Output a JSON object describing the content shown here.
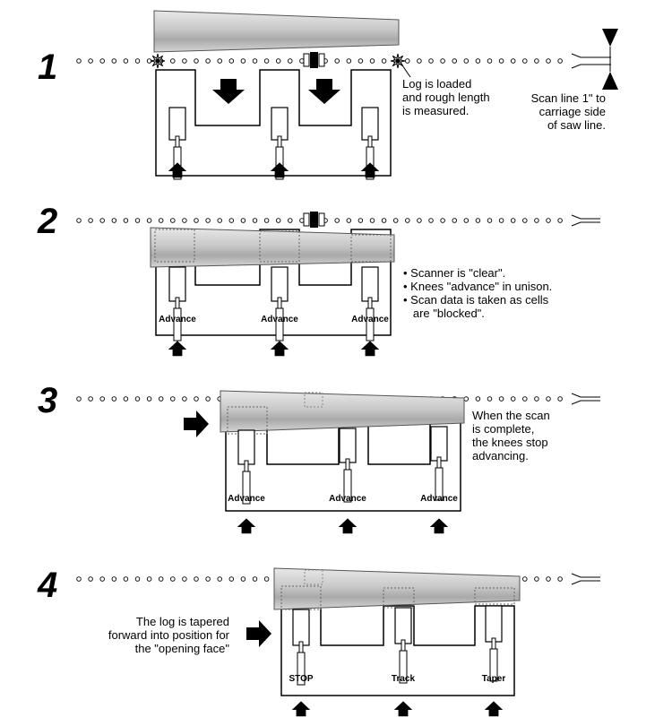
{
  "steps": [
    {
      "number": "1",
      "notes": [
        "Log is loaded",
        "and rough length",
        "is measured."
      ],
      "scan_note": [
        "Scan line 1\" to",
        "carriage side",
        "of saw line."
      ]
    },
    {
      "number": "2",
      "knee_labels": [
        "Advance",
        "Advance",
        "Advance"
      ],
      "bullets": [
        "Scanner is \"clear\".",
        "Knees \"advance\" in unison.",
        "Scan data is taken as cells",
        "are \"blocked\"."
      ]
    },
    {
      "number": "3",
      "knee_labels": [
        "Advance",
        "Advance",
        "Advance"
      ],
      "notes": [
        "When the scan",
        "is complete,",
        "the knees stop",
        "advancing."
      ]
    },
    {
      "number": "4",
      "knee_labels": [
        "STOP",
        "Track",
        "Taper"
      ],
      "notes": [
        "The log is tapered",
        "forward into position for",
        "the \"opening face\""
      ]
    }
  ],
  "icons": [
    "arrow-down-icon",
    "arrow-up-icon",
    "arrow-right-icon",
    "starburst-icon",
    "scanner-icon"
  ]
}
